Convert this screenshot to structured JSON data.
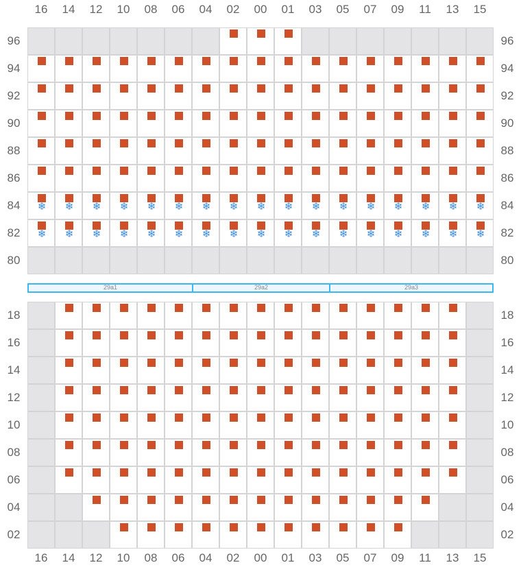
{
  "columns": [
    "16",
    "14",
    "12",
    "10",
    "08",
    "06",
    "04",
    "02",
    "00",
    "01",
    "03",
    "05",
    "07",
    "09",
    "11",
    "13",
    "15"
  ],
  "legend_codes": {
    "g": "unavailable",
    "c": "container",
    "r": "reefer-container"
  },
  "colors": {
    "container": "#cf5028",
    "reefer": "#3d8ee0",
    "unavailable": "#e4e4e7",
    "bar_border": "#3bb8f0"
  },
  "deck": {
    "rows": [
      {
        "label": "96",
        "cells": "gggggggcccggggggg"
      },
      {
        "label": "94",
        "cells": "ccccccccccccccccc"
      },
      {
        "label": "92",
        "cells": "ccccccccccccccccc"
      },
      {
        "label": "90",
        "cells": "ccccccccccccccccc"
      },
      {
        "label": "88",
        "cells": "ccccccccccccccccc"
      },
      {
        "label": "86",
        "cells": "ccccccccccccccccc"
      },
      {
        "label": "84",
        "cells": "rrrrrrrrrrrrrrrrr"
      },
      {
        "label": "82",
        "cells": "rrrrrrrrrrrrrrrrr"
      },
      {
        "label": "80",
        "cells": "ggggggggggggggggg"
      }
    ]
  },
  "hatch_covers": [
    {
      "label": "29a1",
      "span": 6
    },
    {
      "label": "29a2",
      "span": 5
    },
    {
      "label": "29a3",
      "span": 6
    }
  ],
  "hold": {
    "rows": [
      {
        "label": "18",
        "cells": "gcccccccccccccccg"
      },
      {
        "label": "16",
        "cells": "gcccccccccccccccg"
      },
      {
        "label": "14",
        "cells": "gcccccccccccccccg"
      },
      {
        "label": "12",
        "cells": "gcccccccccccccccg"
      },
      {
        "label": "10",
        "cells": "gcccccccccccccccg"
      },
      {
        "label": "08",
        "cells": "gcccccccccccccccg"
      },
      {
        "label": "06",
        "cells": "gcccccccccccccccg"
      },
      {
        "label": "04",
        "cells": "ggcccccccccccccgg"
      },
      {
        "label": "02",
        "cells": "gggcccccccccccggg"
      }
    ]
  },
  "reefer_icon": "❄"
}
